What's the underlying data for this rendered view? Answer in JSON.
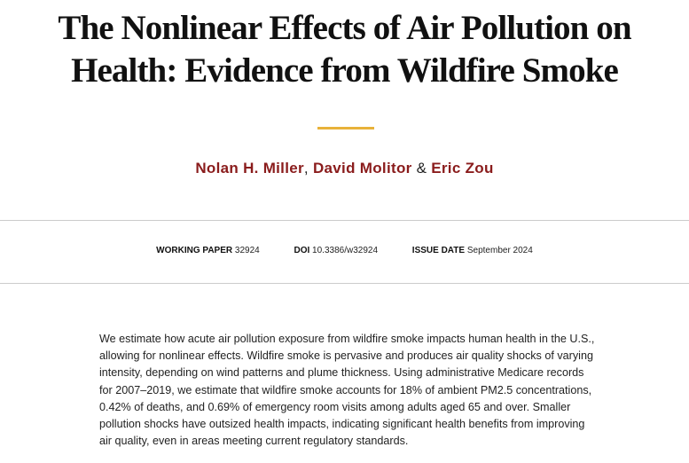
{
  "header": {
    "title": [
      "The Nonlinear Effects of Air Pollution on",
      "Health: Evidence from Wildfire Smoke"
    ],
    "authors": [
      "Nolan H. Miller",
      "David Molitor",
      "Eric Zou"
    ],
    "author_separators": [
      ",",
      "&"
    ]
  },
  "meta": [
    {
      "label": "WORKING PAPER",
      "value": "32924"
    },
    {
      "label": "DOI",
      "value": "10.3386/w32924"
    },
    {
      "label": "ISSUE DATE",
      "value": "September 2024"
    }
  ],
  "abstract": "We estimate how acute air pollution exposure from wildfire smoke impacts human health in the U.S., allowing for nonlinear effects. Wildfire smoke is pervasive and produces air quality shocks of varying intensity, depending on wind patterns and plume thickness. Using administrative Medicare records for 2007–2019, we estimate that wildfire smoke accounts for 18% of ambient PM2.5 concentrations, 0.42% of deaths, and 0.69% of emergency room visits among adults aged 65 and over. Smaller pollution shocks have outsized health impacts, indicating significant health benefits from improving air quality, even in areas meeting current regulatory standards."
}
